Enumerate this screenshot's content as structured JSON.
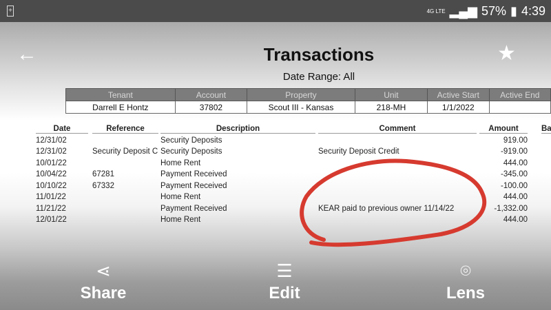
{
  "status_bar": {
    "network": "4G LTE",
    "battery": "57%",
    "time": "4:39"
  },
  "header": {
    "title": "Transactions",
    "date_range": "Date Range:  All"
  },
  "tenant_table": {
    "columns": [
      "Tenant",
      "Account",
      "Property",
      "Unit",
      "Active Start",
      "Active End"
    ],
    "row": [
      "Darrell E Hontz",
      "37802",
      "Scout III - Kansas",
      "218-MH",
      "1/1/2022",
      ""
    ]
  },
  "transactions": {
    "columns": [
      "Date",
      "Reference",
      "Description",
      "Comment",
      "Amount",
      "Ba"
    ],
    "rows": [
      [
        "12/31/02",
        "",
        "Security Deposits",
        "",
        "919.00"
      ],
      [
        "12/31/02",
        "Security Deposit C",
        "Security Deposits",
        "Security Deposit Credit",
        "-919.00"
      ],
      [
        "10/01/22",
        "",
        "Home Rent",
        "",
        "444.00"
      ],
      [
        "10/04/22",
        "67281",
        "Payment Received",
        "",
        "-345.00"
      ],
      [
        "10/10/22",
        "67332",
        "Payment Received",
        "",
        "-100.00"
      ],
      [
        "11/01/22",
        "",
        "Home Rent",
        "",
        "444.00"
      ],
      [
        "11/21/22",
        "",
        "Payment Received",
        "KEAR paid to previous owner 11/14/22",
        "-1,332.00"
      ],
      [
        "12/01/22",
        "",
        "Home Rent",
        "",
        "444.00"
      ]
    ]
  },
  "annotation_color": "#d63a2f",
  "bottom_bar": {
    "share": "Share",
    "edit": "Edit",
    "lens": "Lens"
  }
}
